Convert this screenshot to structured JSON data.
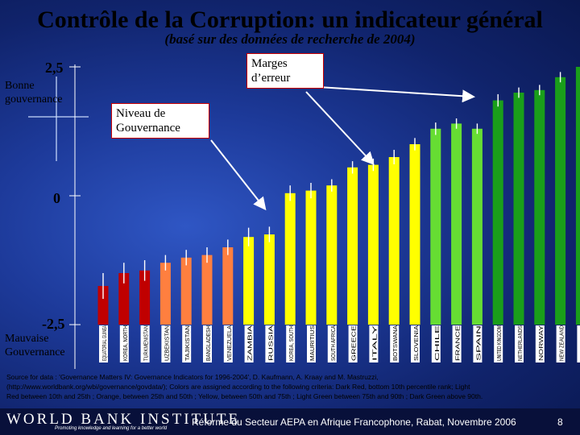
{
  "header": {
    "title": "Contrôle de la Corruption: un indicateur général",
    "subtitle": "(basé sur des données de recherche de 2004)"
  },
  "axis": {
    "top_tick": "2,5",
    "mid_tick": "0",
    "bottom_tick": "-2,5",
    "top_label": "Bonne gouvernance",
    "bottom_label": "Mauvaise Gouvernance"
  },
  "annotations": {
    "error_margin": "Marges d’erreur",
    "level": "Niveau de Gouvernance"
  },
  "colors": {
    "dark_red": "#c00000",
    "orange": "#ff7f3f",
    "yellow": "#ffff00",
    "light_green": "#66dd33",
    "dark_green": "#1a9e1a"
  },
  "chart_data": {
    "type": "bar",
    "title": "Contrôle de la Corruption: un indicateur général",
    "ylim": [
      -2.5,
      2.5
    ],
    "ylabel": "Niveau de Gouvernance",
    "categories": [
      "EQUATORIAL GUINEA",
      "KOREA, NORTH",
      "TURKMENISTAN",
      "UZBEKISTAN",
      "TAJIKISTAN",
      "BANGLADESH",
      "VENEZUELA",
      "ZAMBIA",
      "RUSSIA",
      "KOREA, SOUTH",
      "MAURITIUS",
      "SOUTH AFRICA",
      "GREECE",
      "ITALY",
      "BOTSWANA",
      "SLOVENIA",
      "CHILE",
      "FRANCE",
      "SPAIN",
      "UNITED KINGDOM",
      "NETHERLANDS",
      "NORWAY",
      "NEW ZEALAND",
      "FINLAND"
    ],
    "values": [
      -1.75,
      -1.5,
      -1.45,
      -1.3,
      -1.2,
      -1.15,
      -1.0,
      -0.8,
      -0.75,
      0.05,
      0.1,
      0.2,
      0.55,
      0.6,
      0.75,
      1.0,
      1.3,
      1.4,
      1.3,
      1.85,
      2.0,
      2.05,
      2.3,
      2.5
    ],
    "error_margins": [
      0.25,
      0.2,
      0.2,
      0.15,
      0.15,
      0.15,
      0.15,
      0.18,
      0.15,
      0.15,
      0.15,
      0.12,
      0.12,
      0.12,
      0.14,
      0.12,
      0.12,
      0.1,
      0.1,
      0.12,
      0.1,
      0.1,
      0.1,
      0.12
    ],
    "color_groups": [
      "dark_red",
      "dark_red",
      "dark_red",
      "orange",
      "orange",
      "orange",
      "orange",
      "yellow",
      "yellow",
      "yellow",
      "yellow",
      "yellow",
      "yellow",
      "yellow",
      "yellow",
      "yellow",
      "light_green",
      "light_green",
      "light_green",
      "dark_green",
      "dark_green",
      "dark_green",
      "dark_green",
      "dark_green"
    ]
  },
  "source": {
    "line1": "Source for data : 'Governance Matters IV: Governance Indicators for 1996-2004', D. Kaufmann, A. Kraay and M. Mastruzzi,",
    "line2": "(http://www.worldbank.org/wbi/governance/govdata/); Colors are assigned according to the following criteria: Dark Red, bottom 10th percentile rank; Light",
    "line3": "Red between 10th and 25th ; Orange, between 25th and 50th ; Yellow, between 50th and 75th ; Light Green between 75th and 90th ; Dark Green above 90th."
  },
  "footer": {
    "org": "WORLD BANK INSTITUTE",
    "tagline": "Promoting knowledge and learning for a better world",
    "conference": "Réforme du Secteur AEPA en Afrique Francophone, Rabat, Novembre 2006",
    "page": "8"
  }
}
